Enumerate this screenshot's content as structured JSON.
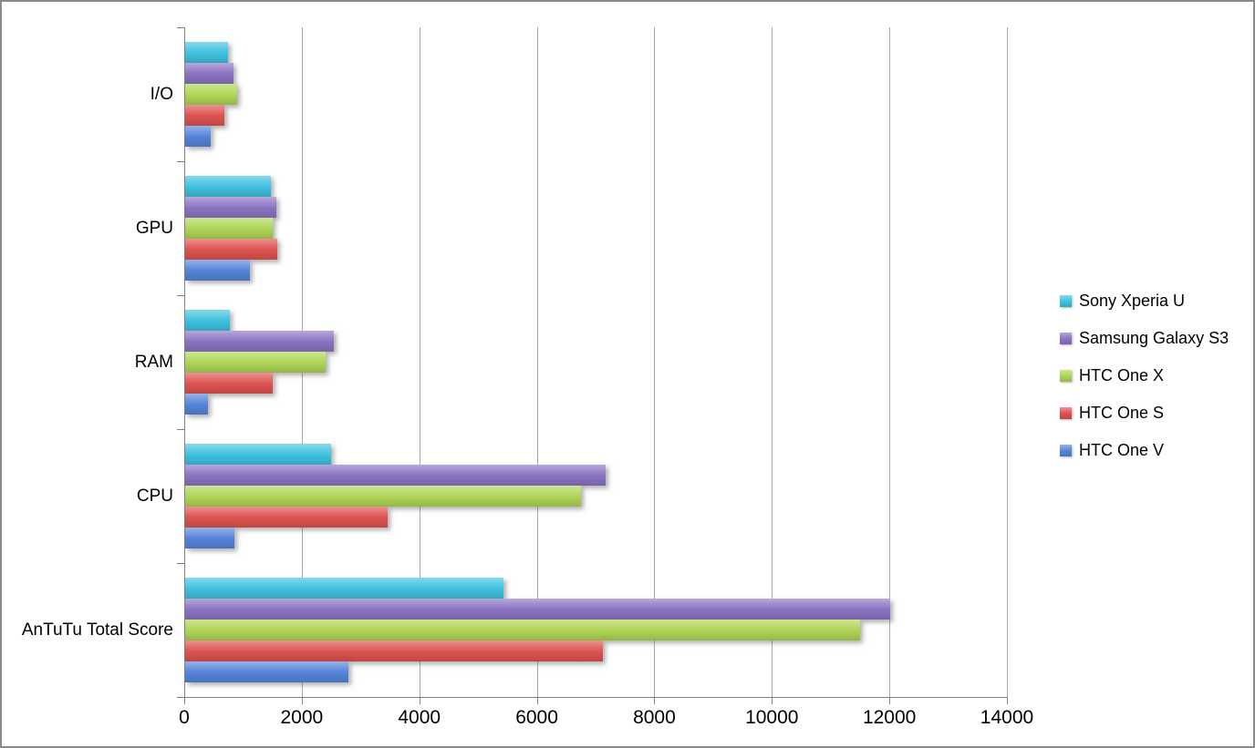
{
  "canvas": {
    "background_color": "#ffffff",
    "frame_border_color": "#8a8a8a",
    "gridline_color": "#a8a8a8",
    "axis_color": "#7f7f7f"
  },
  "chart_data": {
    "type": "bar",
    "orientation": "horizontal",
    "title": "",
    "xlabel": "",
    "ylabel": "",
    "grid": true,
    "legend_position": "right",
    "xlim": [
      0,
      14000
    ],
    "x_ticks": [
      "0",
      "2000",
      "4000",
      "6000",
      "8000",
      "10000",
      "12000",
      "14000"
    ],
    "x_tick_values": [
      0,
      2000,
      4000,
      6000,
      8000,
      10000,
      12000,
      14000
    ],
    "categories": [
      "I/O",
      "GPU",
      "RAM",
      "CPU",
      "AnTuTu Total Score"
    ],
    "series": [
      {
        "name": "Sony Xperia U",
        "color": "#3fc1df",
        "values": [
          730,
          1460,
          760,
          2490,
          5420
        ]
      },
      {
        "name": "Samsung Galaxy S3",
        "color": "#8b73c2",
        "values": [
          830,
          1550,
          2530,
          7160,
          12000
        ]
      },
      {
        "name": "HTC One X",
        "color": "#aed556",
        "values": [
          890,
          1490,
          2390,
          6740,
          11480
        ]
      },
      {
        "name": "HTC One S",
        "color": "#dd5350",
        "values": [
          660,
          1560,
          1490,
          3440,
          7110
        ]
      },
      {
        "name": "HTC One V",
        "color": "#5584d8",
        "values": [
          430,
          1100,
          390,
          840,
          2780
        ]
      }
    ]
  }
}
